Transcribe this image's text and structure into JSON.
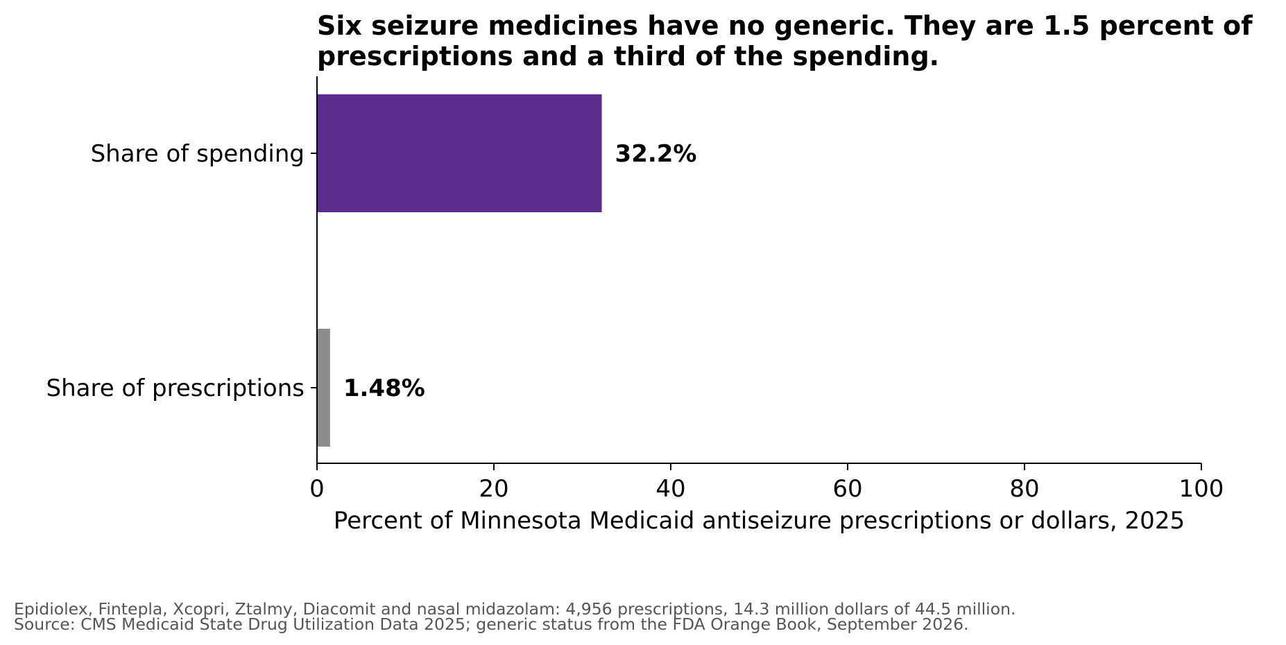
{
  "chart_data": {
    "type": "bar",
    "orientation": "horizontal",
    "title_lines": [
      "Six seizure medicines have no generic. They are 1.5 percent of",
      "prescriptions and a third of the spending."
    ],
    "categories": [
      "Share of spending",
      "Share of prescriptions"
    ],
    "values": [
      32.2,
      1.48
    ],
    "value_labels": [
      "32.2%",
      "1.48%"
    ],
    "colors": [
      "#5b2d8e",
      "#8c8c8c"
    ],
    "xlabel": "Percent of Minnesota Medicaid antiseizure prescriptions or dollars, 2025",
    "ylabel": "",
    "xlim": [
      0,
      100
    ],
    "x_ticks": [
      0,
      20,
      40,
      60,
      80,
      100
    ],
    "grid": false
  },
  "footnotes": [
    "Epidiolex, Fintepla, Xcopri, Ztalmy, Diacomit and nasal midazolam: 4,956 prescriptions, 14.3 million dollars of 44.5 million.",
    "Source: CMS Medicaid State Drug Utilization Data 2025; generic status from the FDA Orange Book, September 2026."
  ]
}
